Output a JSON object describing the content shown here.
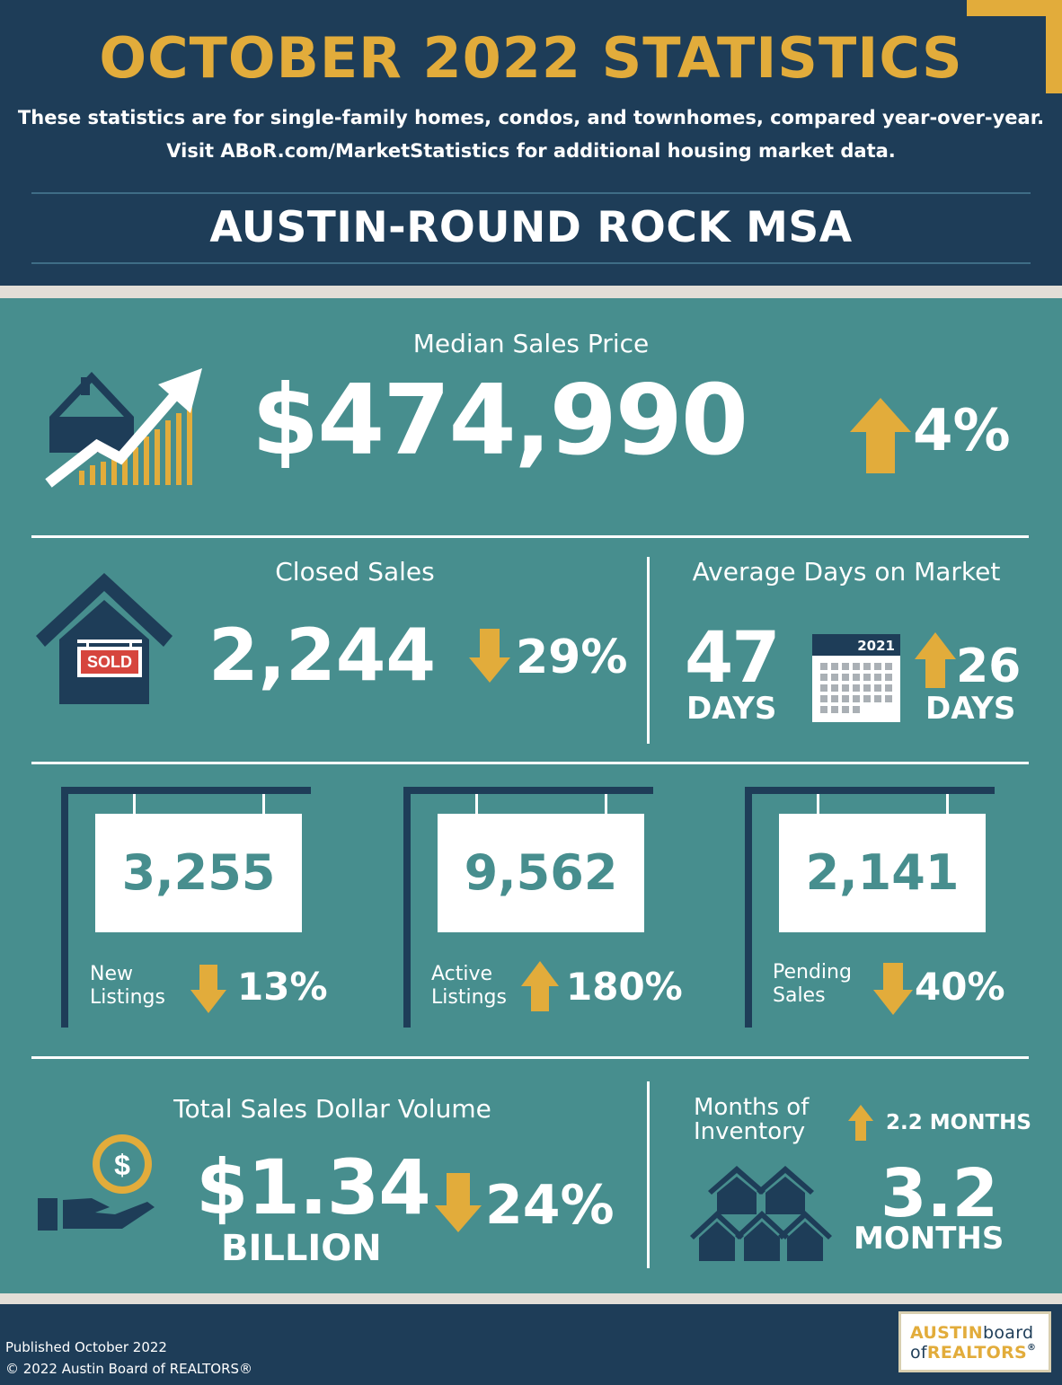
{
  "header": {
    "title": "OCTOBER 2022 STATISTICS",
    "subtitle_line1": "These statistics are for single-family homes, condos, and townhomes, compared year-over-year.",
    "subtitle_line2": "Visit ABoR.com/MarketStatistics for additional housing market data.",
    "region": "AUSTIN-ROUND ROCK MSA"
  },
  "median_price": {
    "label": "Median Sales Price",
    "value": "$474,990",
    "change": "4%",
    "direction": "up"
  },
  "closed_sales": {
    "label": "Closed Sales",
    "value": "2,244",
    "change": "29%",
    "direction": "down",
    "sign_text": "SOLD"
  },
  "days_on_market": {
    "label": "Average Days on Market",
    "value": "47",
    "unit": "DAYS",
    "calendar_year": "2021",
    "change": "26",
    "change_unit": "DAYS",
    "direction": "up"
  },
  "listings": [
    {
      "value": "3,255",
      "label_line1": "New",
      "label_line2": "Listings",
      "change": "13%",
      "direction": "down"
    },
    {
      "value": "9,562",
      "label_line1": "Active",
      "label_line2": "Listings",
      "change": "180%",
      "direction": "up"
    },
    {
      "value": "2,141",
      "label_line1": "Pending",
      "label_line2": "Sales",
      "change": "40%",
      "direction": "down"
    }
  ],
  "dollar_volume": {
    "label": "Total Sales Dollar Volume",
    "value": "$1.34",
    "unit": "BILLION",
    "change": "24%",
    "direction": "down"
  },
  "inventory": {
    "label_line1": "Months of",
    "label_line2": "Inventory",
    "change": "2.2 MONTHS",
    "direction": "up",
    "value": "3.2",
    "unit": "MONTHS"
  },
  "footer": {
    "published": "Published October 2022",
    "copyright": "© 2022 Austin Board of REALTORS®",
    "logo_line1_a": "AUSTIN",
    "logo_line1_b": "board",
    "logo_line2_a": "of",
    "logo_line2_b": "REALTORS",
    "logo_mark": "®"
  },
  "colors": {
    "navy": "#1e3d58",
    "teal": "#478e8e",
    "gold": "#e2ac3b",
    "white": "#ffffff",
    "sold_red": "#d6453d"
  }
}
